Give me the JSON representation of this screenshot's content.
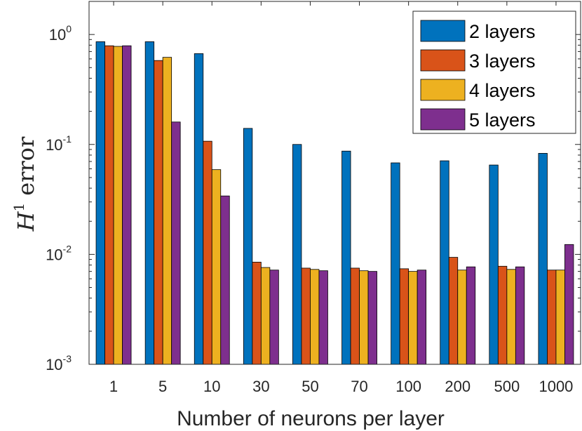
{
  "chart_data": {
    "type": "bar",
    "categories": [
      "1",
      "5",
      "10",
      "30",
      "50",
      "70",
      "100",
      "200",
      "500",
      "1000"
    ],
    "series": [
      {
        "name": "2 layers",
        "color": "#0072BD",
        "values": [
          0.86,
          0.86,
          0.67,
          0.14,
          0.1,
          0.087,
          0.068,
          0.071,
          0.065,
          0.083
        ]
      },
      {
        "name": "3 layers",
        "color": "#D95319",
        "values": [
          0.79,
          0.58,
          0.107,
          0.0085,
          0.0075,
          0.0075,
          0.0074,
          0.0094,
          0.0078,
          0.0072
        ]
      },
      {
        "name": "4 layers",
        "color": "#EDB120",
        "values": [
          0.78,
          0.62,
          0.059,
          0.0076,
          0.0073,
          0.0071,
          0.007,
          0.0072,
          0.0073,
          0.0072
        ]
      },
      {
        "name": "5 layers",
        "color": "#7E2F8E",
        "values": [
          0.79,
          0.16,
          0.034,
          0.0072,
          0.0071,
          0.007,
          0.0072,
          0.0077,
          0.0077,
          0.0123
        ]
      }
    ],
    "y_scale": "log",
    "ylim": [
      0.001,
      2.0
    ],
    "yticks": [
      {
        "base": "10",
        "exp": "0",
        "value": 1
      },
      {
        "base": "10",
        "exp": "-1",
        "value": 0.1
      },
      {
        "base": "10",
        "exp": "-2",
        "value": 0.01
      },
      {
        "base": "10",
        "exp": "-3",
        "value": 0.001
      }
    ],
    "xlabel": "Number of neurons per layer",
    "ylabel": {
      "main": "H",
      "sup": "1",
      "rest": "error"
    },
    "legend_position": "top-right",
    "grid": false
  }
}
